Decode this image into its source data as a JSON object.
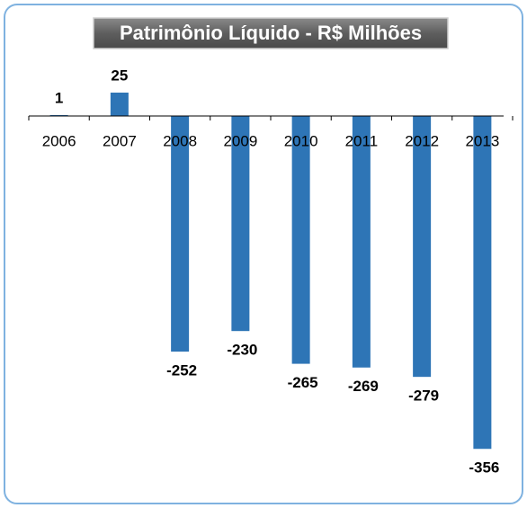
{
  "chart_data": {
    "type": "bar",
    "title": "Patrimônio Líquido - R$ Milhões",
    "categories": [
      "2006",
      "2007",
      "2008",
      "2009",
      "2010",
      "2011",
      "2012",
      "2013"
    ],
    "values": [
      1,
      25,
      -252,
      -230,
      -265,
      -269,
      -279,
      -356
    ],
    "color": "#2e75b6"
  }
}
